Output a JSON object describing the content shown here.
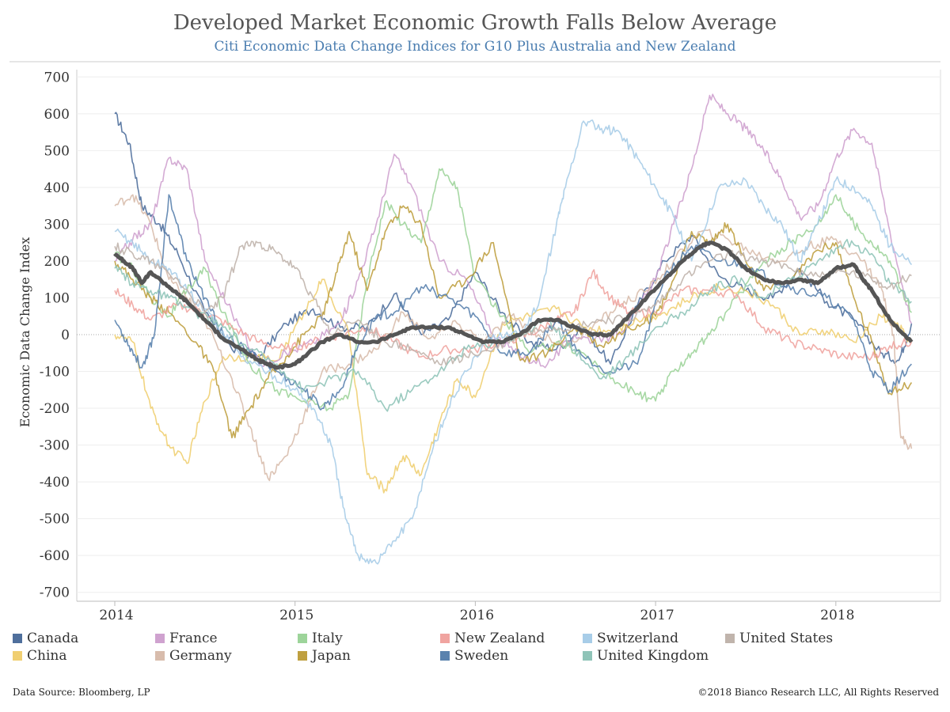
{
  "title": "Developed Market Economic Growth Falls Below Average",
  "subtitle": "Citi Economic Data Change Indices for G10 Plus Australia and New Zealand",
  "footer": {
    "source": "Data Source: Bloomberg, LP",
    "copyright": "©2018 Bianco Research LLC, All Rights Reserved"
  },
  "chart_data": {
    "type": "line",
    "ylabel": "Economic Data Change Index",
    "xlabel": "",
    "x_ticks": [
      "2014",
      "2015",
      "2016",
      "2017",
      "2018"
    ],
    "x_range": [
      2014.0,
      2018.42
    ],
    "y_ticks": [
      700,
      600,
      500,
      400,
      300,
      200,
      100,
      0,
      -100,
      -200,
      -300,
      -400,
      -500,
      -600,
      -700
    ],
    "ylim": [
      -720,
      720
    ],
    "zero_line": "dotted",
    "grid": "horizontal",
    "legend_position": "bottom",
    "series": [
      {
        "name": "Canada",
        "color": "#4f6f9c",
        "x": [
          2014.0,
          2014.08,
          2014.15,
          2014.25,
          2014.35,
          2014.5,
          2014.65,
          2014.8,
          2014.95,
          2015.1,
          2015.25,
          2015.4,
          2015.55,
          2015.7,
          2015.85,
          2016.0,
          2016.15,
          2016.3,
          2016.45,
          2016.6,
          2016.75,
          2016.9,
          2017.05,
          2017.2,
          2017.35,
          2017.5,
          2017.65,
          2017.8,
          2017.95,
          2018.1,
          2018.25,
          2018.35,
          2018.42
        ],
        "values": [
          600,
          520,
          350,
          300,
          220,
          60,
          -40,
          -60,
          30,
          70,
          20,
          20,
          110,
          0,
          40,
          170,
          60,
          -20,
          -40,
          20,
          -80,
          80,
          200,
          270,
          160,
          120,
          100,
          180,
          90,
          40,
          -50,
          -70,
          30
        ]
      },
      {
        "name": "China",
        "color": "#f0cf72",
        "x": [
          2014.0,
          2014.1,
          2014.2,
          2014.3,
          2014.4,
          2014.5,
          2014.6,
          2014.75,
          2014.9,
          2015.05,
          2015.15,
          2015.3,
          2015.4,
          2015.5,
          2015.6,
          2015.7,
          2015.8,
          2015.9,
          2016.0,
          2016.15,
          2016.3,
          2016.45,
          2016.6,
          2016.75,
          2016.9,
          2017.05,
          2017.2,
          2017.35,
          2017.5,
          2017.65,
          2017.8,
          2017.95,
          2018.1,
          2018.25,
          2018.35,
          2018.42
        ],
        "values": [
          0,
          -20,
          -200,
          -300,
          -350,
          -180,
          -60,
          -60,
          -70,
          60,
          150,
          0,
          -380,
          -420,
          -330,
          -380,
          -240,
          -120,
          -170,
          30,
          50,
          70,
          20,
          10,
          40,
          60,
          100,
          130,
          120,
          80,
          0,
          10,
          -20,
          50,
          20,
          -20
        ]
      },
      {
        "name": "France",
        "color": "#cfa2cf",
        "x": [
          2014.0,
          2014.1,
          2014.2,
          2014.3,
          2014.4,
          2014.5,
          2014.65,
          2014.8,
          2014.95,
          2015.1,
          2015.25,
          2015.35,
          2015.45,
          2015.55,
          2015.65,
          2015.8,
          2015.95,
          2016.1,
          2016.25,
          2016.4,
          2016.55,
          2016.7,
          2016.85,
          2017.0,
          2017.1,
          2017.2,
          2017.3,
          2017.4,
          2017.5,
          2017.6,
          2017.7,
          2017.8,
          2017.9,
          2018.0,
          2018.1,
          2018.2,
          2018.3,
          2018.42
        ],
        "values": [
          200,
          260,
          300,
          480,
          450,
          200,
          60,
          -80,
          -50,
          -20,
          30,
          150,
          300,
          490,
          400,
          200,
          150,
          0,
          -60,
          -80,
          0,
          -20,
          30,
          150,
          300,
          450,
          650,
          600,
          560,
          500,
          420,
          320,
          350,
          480,
          560,
          520,
          280,
          30
        ]
      },
      {
        "name": "Germany",
        "color": "#d8bcac",
        "x": [
          2014.0,
          2014.1,
          2014.2,
          2014.3,
          2014.4,
          2014.5,
          2014.65,
          2014.75,
          2014.85,
          2014.95,
          2015.05,
          2015.15,
          2015.3,
          2015.45,
          2015.6,
          2015.75,
          2015.9,
          2016.05,
          2016.2,
          2016.35,
          2016.5,
          2016.65,
          2016.8,
          2016.95,
          2017.1,
          2017.25,
          2017.4,
          2017.55,
          2017.7,
          2017.85,
          2018.0,
          2018.15,
          2018.25,
          2018.32,
          2018.36,
          2018.42
        ],
        "values": [
          350,
          380,
          300,
          150,
          100,
          40,
          -120,
          -250,
          -390,
          -330,
          -220,
          -100,
          -80,
          -40,
          60,
          -10,
          30,
          -20,
          50,
          0,
          -30,
          20,
          80,
          120,
          200,
          280,
          260,
          220,
          200,
          240,
          260,
          200,
          130,
          0,
          -280,
          -310
        ]
      },
      {
        "name": "Italy",
        "color": "#9dd49a",
        "x": [
          2014.0,
          2014.1,
          2014.2,
          2014.3,
          2014.4,
          2014.5,
          2014.6,
          2014.75,
          2014.9,
          2015.05,
          2015.2,
          2015.3,
          2015.4,
          2015.5,
          2015.6,
          2015.7,
          2015.8,
          2015.9,
          2016.0,
          2016.15,
          2016.3,
          2016.45,
          2016.6,
          2016.75,
          2016.9,
          2017.0,
          2017.1,
          2017.2,
          2017.3,
          2017.45,
          2017.6,
          2017.75,
          2017.9,
          2018.0,
          2018.1,
          2018.2,
          2018.3,
          2018.42
        ],
        "values": [
          220,
          180,
          100,
          50,
          120,
          180,
          60,
          -80,
          -150,
          -180,
          -200,
          -160,
          150,
          360,
          300,
          250,
          450,
          400,
          150,
          50,
          -50,
          -20,
          -50,
          -120,
          -160,
          -180,
          -100,
          -50,
          0,
          100,
          200,
          250,
          300,
          380,
          300,
          250,
          200,
          60
        ]
      },
      {
        "name": "Japan",
        "color": "#bfa040",
        "x": [
          2014.0,
          2014.1,
          2014.2,
          2014.3,
          2014.45,
          2014.55,
          2014.65,
          2014.75,
          2014.85,
          2014.95,
          2015.05,
          2015.15,
          2015.22,
          2015.3,
          2015.4,
          2015.5,
          2015.6,
          2015.7,
          2015.8,
          2015.95,
          2016.1,
          2016.25,
          2016.4,
          2016.55,
          2016.7,
          2016.85,
          2017.0,
          2017.1,
          2017.2,
          2017.3,
          2017.4,
          2017.5,
          2017.6,
          2017.75,
          2017.9,
          2018.0,
          2018.1,
          2018.2,
          2018.3,
          2018.42
        ],
        "values": [
          200,
          150,
          100,
          60,
          -20,
          -100,
          -280,
          -200,
          -120,
          -60,
          0,
          50,
          150,
          280,
          120,
          280,
          350,
          300,
          100,
          150,
          250,
          -70,
          -50,
          20,
          -30,
          20,
          50,
          150,
          280,
          250,
          300,
          200,
          120,
          150,
          230,
          250,
          100,
          -20,
          -160,
          -130
        ]
      },
      {
        "name": "New Zealand",
        "color": "#f0a4a0",
        "x": [
          2014.0,
          2014.1,
          2014.2,
          2014.35,
          2014.5,
          2014.65,
          2014.8,
          2014.95,
          2015.1,
          2015.25,
          2015.4,
          2015.55,
          2015.7,
          2015.85,
          2016.0,
          2016.15,
          2016.3,
          2016.45,
          2016.55,
          2016.65,
          2016.75,
          2016.85,
          2017.0,
          2017.15,
          2017.3,
          2017.45,
          2017.6,
          2017.75,
          2017.9,
          2018.05,
          2018.2,
          2018.3,
          2018.42
        ],
        "values": [
          120,
          80,
          40,
          80,
          60,
          20,
          -20,
          -40,
          -20,
          0,
          20,
          -20,
          -60,
          -40,
          -40,
          -20,
          0,
          40,
          60,
          170,
          100,
          60,
          60,
          120,
          120,
          110,
          20,
          -20,
          -40,
          -60,
          -60,
          -30,
          -20
        ]
      },
      {
        "name": "Sweden",
        "color": "#5a82ae",
        "x": [
          2014.0,
          2014.08,
          2014.15,
          2014.22,
          2014.3,
          2014.4,
          2014.5,
          2014.6,
          2014.75,
          2014.9,
          2015.05,
          2015.15,
          2015.25,
          2015.35,
          2015.45,
          2015.55,
          2015.7,
          2015.85,
          2016.0,
          2016.15,
          2016.3,
          2016.45,
          2016.6,
          2016.75,
          2016.9,
          2017.05,
          2017.2,
          2017.35,
          2017.5,
          2017.65,
          2017.8,
          2017.95,
          2018.1,
          2018.2,
          2018.3,
          2018.42
        ],
        "values": [
          40,
          -30,
          -90,
          0,
          380,
          200,
          100,
          0,
          -50,
          -100,
          -150,
          -200,
          -150,
          -30,
          50,
          60,
          130,
          100,
          50,
          -50,
          -50,
          40,
          -60,
          -100,
          -80,
          160,
          240,
          200,
          190,
          150,
          120,
          100,
          40,
          -100,
          -150,
          -80
        ]
      },
      {
        "name": "Switzerland",
        "color": "#a8cde8",
        "x": [
          2014.0,
          2014.1,
          2014.2,
          2014.3,
          2014.4,
          2014.55,
          2014.7,
          2014.85,
          2015.0,
          2015.1,
          2015.2,
          2015.28,
          2015.35,
          2015.45,
          2015.55,
          2015.65,
          2015.75,
          2015.85,
          2015.95,
          2016.1,
          2016.25,
          2016.35,
          2016.45,
          2016.5,
          2016.6,
          2016.7,
          2016.8,
          2016.9,
          2017.0,
          2017.1,
          2017.2,
          2017.35,
          2017.5,
          2017.6,
          2017.7,
          2017.8,
          2017.9,
          2018.0,
          2018.1,
          2018.2,
          2018.3,
          2018.42
        ],
        "values": [
          280,
          250,
          200,
          180,
          120,
          40,
          -60,
          -100,
          -150,
          -200,
          -300,
          -500,
          -600,
          -620,
          -560,
          -500,
          -330,
          -200,
          -100,
          0,
          0,
          80,
          300,
          400,
          580,
          560,
          550,
          480,
          400,
          320,
          200,
          400,
          420,
          350,
          300,
          200,
          300,
          420,
          400,
          350,
          240,
          190
        ]
      },
      {
        "name": "United Kingdom",
        "color": "#8fc4b8",
        "x": [
          2014.0,
          2014.1,
          2014.2,
          2014.3,
          2014.45,
          2014.6,
          2014.75,
          2014.9,
          2015.05,
          2015.2,
          2015.35,
          2015.5,
          2015.65,
          2015.8,
          2015.95,
          2016.1,
          2016.25,
          2016.4,
          2016.55,
          2016.7,
          2016.85,
          2017.0,
          2017.15,
          2017.3,
          2017.45,
          2017.6,
          2017.75,
          2017.9,
          2018.05,
          2018.2,
          2018.3,
          2018.42
        ],
        "values": [
          180,
          140,
          120,
          100,
          60,
          20,
          -40,
          -80,
          -150,
          -120,
          -100,
          -200,
          -150,
          -100,
          -40,
          -20,
          0,
          40,
          -40,
          -120,
          -60,
          20,
          60,
          120,
          150,
          100,
          150,
          200,
          250,
          220,
          140,
          90
        ]
      },
      {
        "name": "United States",
        "color": "#c0b4ac",
        "x": [
          2014.0,
          2014.1,
          2014.2,
          2014.35,
          2014.5,
          2014.6,
          2014.7,
          2014.8,
          2014.9,
          2015.0,
          2015.1,
          2015.2,
          2015.35,
          2015.5,
          2015.65,
          2015.8,
          2015.95,
          2016.1,
          2016.25,
          2016.4,
          2016.55,
          2016.7,
          2016.85,
          2017.0,
          2017.15,
          2017.3,
          2017.45,
          2017.6,
          2017.75,
          2017.9,
          2018.05,
          2018.2,
          2018.3,
          2018.42
        ],
        "values": [
          240,
          220,
          200,
          150,
          60,
          100,
          240,
          250,
          220,
          180,
          100,
          0,
          40,
          -20,
          -40,
          -80,
          -60,
          -40,
          0,
          20,
          20,
          40,
          40,
          80,
          150,
          200,
          220,
          200,
          180,
          160,
          170,
          150,
          130,
          160
        ]
      },
      {
        "name": "Average",
        "color": "#555555",
        "emphasis": true,
        "x": [
          2014.0,
          2014.05,
          2014.1,
          2014.15,
          2014.2,
          2014.3,
          2014.35,
          2014.4,
          2014.5,
          2014.6,
          2014.7,
          2014.8,
          2014.85,
          2014.9,
          2015.0,
          2015.05,
          2015.15,
          2015.25,
          2015.35,
          2015.45,
          2015.55,
          2015.65,
          2015.75,
          2015.85,
          2015.95,
          2016.05,
          2016.15,
          2016.25,
          2016.35,
          2016.45,
          2016.55,
          2016.65,
          2016.75,
          2016.85,
          2016.95,
          2017.05,
          2017.15,
          2017.25,
          2017.3,
          2017.4,
          2017.5,
          2017.6,
          2017.7,
          2017.8,
          2017.9,
          2018.0,
          2018.1,
          2018.15,
          2018.2,
          2018.3,
          2018.42
        ],
        "values": [
          220,
          200,
          180,
          140,
          170,
          130,
          110,
          90,
          40,
          -10,
          -40,
          -70,
          -80,
          -90,
          -80,
          -60,
          -20,
          0,
          -20,
          -20,
          0,
          20,
          20,
          20,
          0,
          -20,
          -20,
          0,
          40,
          40,
          20,
          0,
          0,
          50,
          100,
          150,
          200,
          240,
          250,
          230,
          180,
          150,
          140,
          150,
          140,
          180,
          190,
          150,
          120,
          40,
          -20
        ]
      }
    ]
  },
  "legend": [
    {
      "label": "Canada",
      "color": "#4f6f9c"
    },
    {
      "label": "France",
      "color": "#cfa2cf"
    },
    {
      "label": "Italy",
      "color": "#9dd49a"
    },
    {
      "label": "New Zealand",
      "color": "#f0a4a0"
    },
    {
      "label": "Switzerland",
      "color": "#a8cde8"
    },
    {
      "label": "United States",
      "color": "#c0b4ac"
    },
    {
      "label": "China",
      "color": "#f0cf72"
    },
    {
      "label": "Germany",
      "color": "#d8bcac"
    },
    {
      "label": "Japan",
      "color": "#bfa040"
    },
    {
      "label": "Sweden",
      "color": "#5a82ae"
    },
    {
      "label": "United Kingdom",
      "color": "#8fc4b8"
    }
  ]
}
